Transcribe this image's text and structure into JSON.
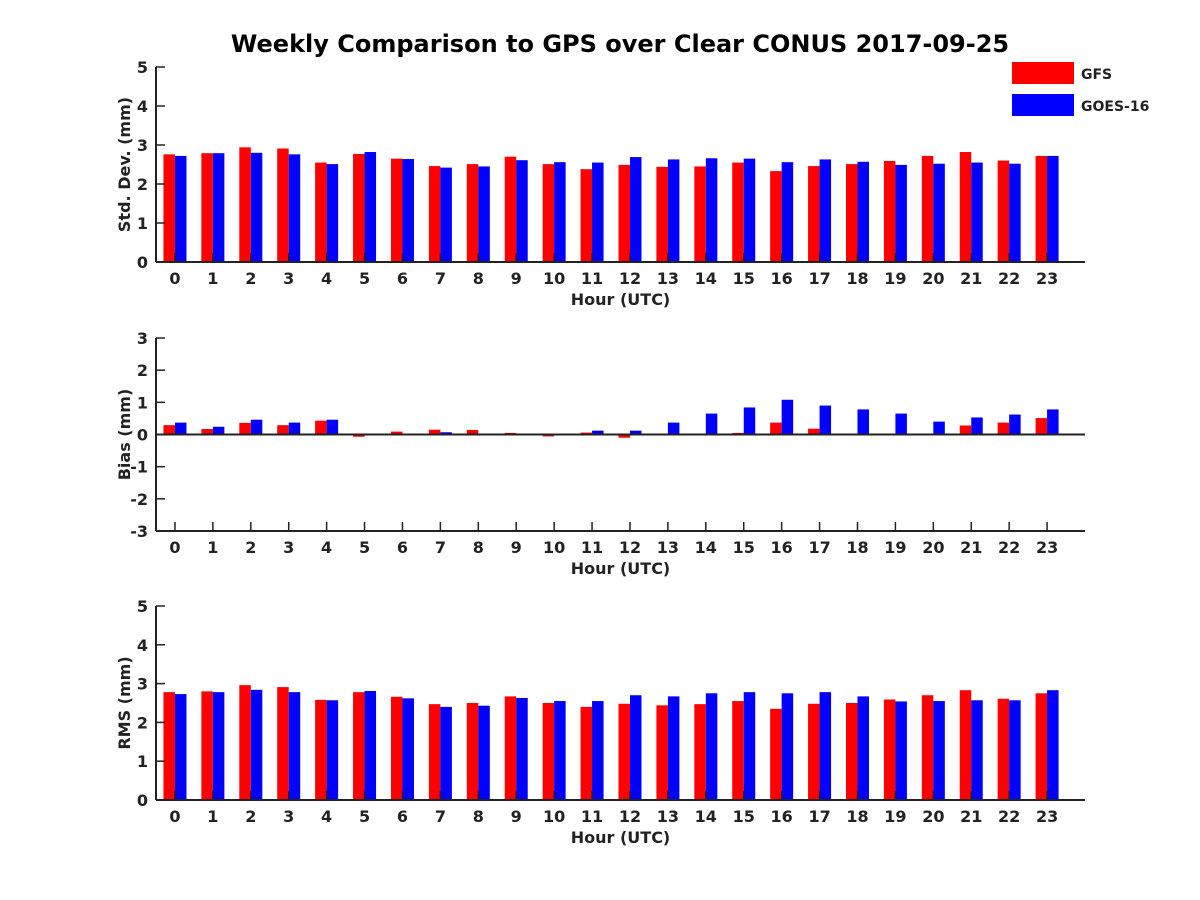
{
  "title": "Weekly Comparison to GPS over Clear CONUS 2017-09-25",
  "colors": {
    "GFS": "#ff0000",
    "GOES-16": "#0000ff",
    "axis": "#222222"
  },
  "chart_data": [
    {
      "type": "bar",
      "ylabel": "Std. Dev. (mm)",
      "xlabel": "Hour (UTC)",
      "ylim": [
        0,
        5
      ],
      "yticks": [
        "0",
        "1",
        "2",
        "3",
        "4",
        "5"
      ],
      "categories": [
        "0",
        "1",
        "2",
        "3",
        "4",
        "5",
        "6",
        "7",
        "8",
        "9",
        "10",
        "11",
        "12",
        "13",
        "14",
        "15",
        "16",
        "17",
        "18",
        "19",
        "20",
        "21",
        "22",
        "23"
      ],
      "legend_position": "top-right",
      "series": [
        {
          "name": "GFS",
          "values": [
            2.76,
            2.79,
            2.94,
            2.91,
            2.55,
            2.77,
            2.65,
            2.46,
            2.51,
            2.7,
            2.51,
            2.38,
            2.49,
            2.44,
            2.45,
            2.55,
            2.33,
            2.46,
            2.51,
            2.59,
            2.72,
            2.82,
            2.6,
            2.72
          ]
        },
        {
          "name": "GOES-16",
          "values": [
            2.72,
            2.79,
            2.8,
            2.76,
            2.51,
            2.82,
            2.64,
            2.42,
            2.45,
            2.61,
            2.56,
            2.55,
            2.69,
            2.63,
            2.66,
            2.65,
            2.56,
            2.63,
            2.57,
            2.49,
            2.52,
            2.55,
            2.52,
            2.72
          ]
        }
      ]
    },
    {
      "type": "bar",
      "ylabel": "Bias (mm)",
      "xlabel": "Hour (UTC)",
      "ylim": [
        -3,
        3
      ],
      "yticks": [
        "-3",
        "-2",
        "-1",
        "0",
        "1",
        "2",
        "3"
      ],
      "categories": [
        "0",
        "1",
        "2",
        "3",
        "4",
        "5",
        "6",
        "7",
        "8",
        "9",
        "10",
        "11",
        "12",
        "13",
        "14",
        "15",
        "16",
        "17",
        "18",
        "19",
        "20",
        "21",
        "22",
        "23"
      ],
      "series": [
        {
          "name": "GFS",
          "values": [
            0.29,
            0.17,
            0.36,
            0.29,
            0.43,
            -0.07,
            0.09,
            0.15,
            0.14,
            0.05,
            -0.06,
            0.06,
            -0.1,
            0.0,
            -0.02,
            0.05,
            0.37,
            0.18,
            0.03,
            0.0,
            0.0,
            0.28,
            0.37,
            0.51
          ]
        },
        {
          "name": "GOES-16",
          "values": [
            0.37,
            0.24,
            0.46,
            0.37,
            0.46,
            0.0,
            0.03,
            0.07,
            0.0,
            0.0,
            0.0,
            0.12,
            0.12,
            0.37,
            0.65,
            0.84,
            1.08,
            0.9,
            0.78,
            0.65,
            0.4,
            0.53,
            0.62,
            0.78
          ]
        }
      ]
    },
    {
      "type": "bar",
      "ylabel": "RMS (mm)",
      "xlabel": "Hour (UTC)",
      "ylim": [
        0,
        5
      ],
      "yticks": [
        "0",
        "1",
        "2",
        "3",
        "4",
        "5"
      ],
      "categories": [
        "0",
        "1",
        "2",
        "3",
        "4",
        "5",
        "6",
        "7",
        "8",
        "9",
        "10",
        "11",
        "12",
        "13",
        "14",
        "15",
        "16",
        "17",
        "18",
        "19",
        "20",
        "21",
        "22",
        "23"
      ],
      "series": [
        {
          "name": "GFS",
          "values": [
            2.78,
            2.8,
            2.96,
            2.91,
            2.58,
            2.78,
            2.66,
            2.47,
            2.5,
            2.67,
            2.5,
            2.4,
            2.48,
            2.44,
            2.47,
            2.55,
            2.35,
            2.48,
            2.5,
            2.59,
            2.7,
            2.83,
            2.61,
            2.75
          ]
        },
        {
          "name": "GOES-16",
          "values": [
            2.73,
            2.78,
            2.84,
            2.78,
            2.57,
            2.81,
            2.62,
            2.4,
            2.43,
            2.63,
            2.55,
            2.55,
            2.7,
            2.67,
            2.75,
            2.78,
            2.75,
            2.78,
            2.67,
            2.54,
            2.55,
            2.57,
            2.57,
            2.83
          ]
        }
      ]
    }
  ]
}
